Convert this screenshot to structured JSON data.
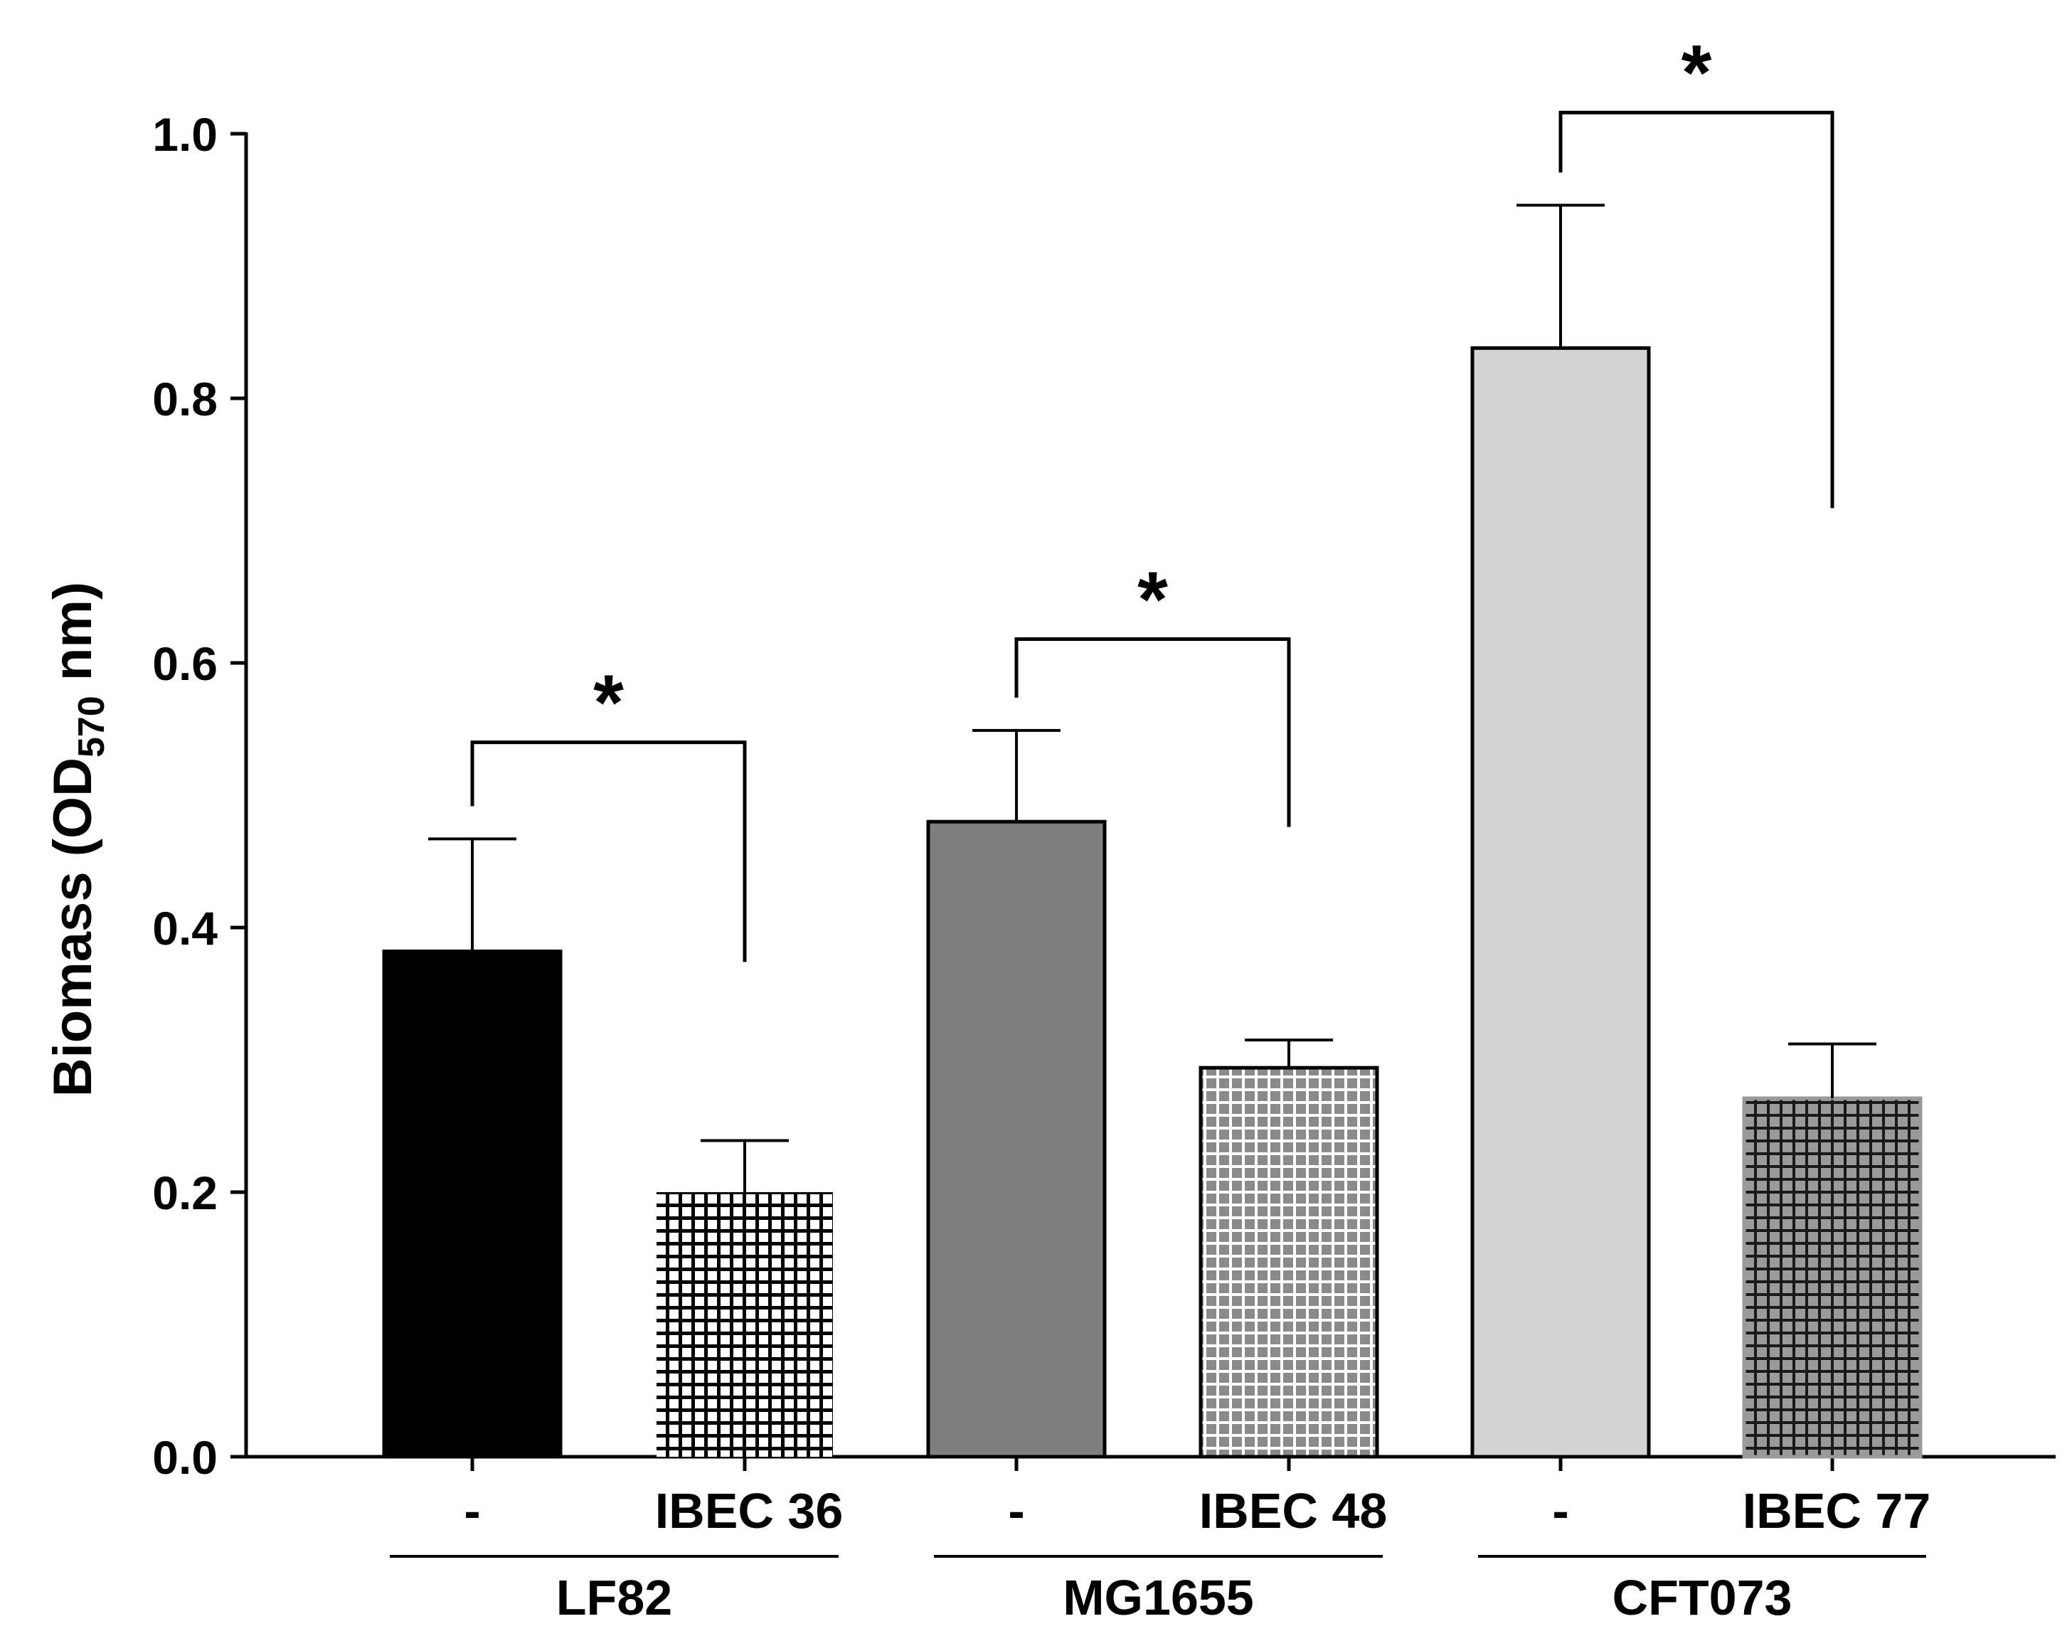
{
  "chart_data": {
    "type": "bar",
    "title": "",
    "ylabel_main": "Biomass (OD",
    "ylabel_sub": "570",
    "ylabel_tail": " nm)",
    "ylim": [
      0,
      1.0
    ],
    "yticks": [
      {
        "value": 0.0,
        "label": "0.0"
      },
      {
        "value": 0.2,
        "label": "0.2"
      },
      {
        "value": 0.4,
        "label": "0.4"
      },
      {
        "value": 0.6,
        "label": "0.6"
      },
      {
        "value": 0.8,
        "label": "0.8"
      },
      {
        "value": 1.0,
        "label": "1.0"
      }
    ],
    "groups": [
      {
        "name": "LF82",
        "bars": [
          {
            "label": "-",
            "value": 0.382,
            "error": 0.085,
            "fill": "#000000",
            "pattern": "solid"
          },
          {
            "label": "IBEC 36",
            "value": 0.2,
            "error": 0.039,
            "fill": "#ffffff",
            "pattern": "grid-dark-on-light"
          }
        ],
        "significance": "*",
        "bracket_top": 0.54
      },
      {
        "name": "MG1655",
        "bars": [
          {
            "label": "-",
            "value": 0.48,
            "error": 0.069,
            "fill": "#7f7f7f",
            "pattern": "solid"
          },
          {
            "label": "IBEC 48",
            "value": 0.294,
            "error": 0.021,
            "fill": "#dcdcdc",
            "pattern": "grid-light-on-grey"
          }
        ],
        "significance": "*",
        "bracket_top": 0.618
      },
      {
        "name": "CFT073",
        "bars": [
          {
            "label": "-",
            "value": 0.838,
            "error": 0.108,
            "fill": "#d3d3d3",
            "pattern": "solid"
          },
          {
            "label": "IBEC 77",
            "value": 0.271,
            "error": 0.041,
            "fill": "#555555",
            "pattern": "grid-dark-on-grey"
          }
        ],
        "significance": "*",
        "bracket_top": 1.016
      }
    ]
  }
}
